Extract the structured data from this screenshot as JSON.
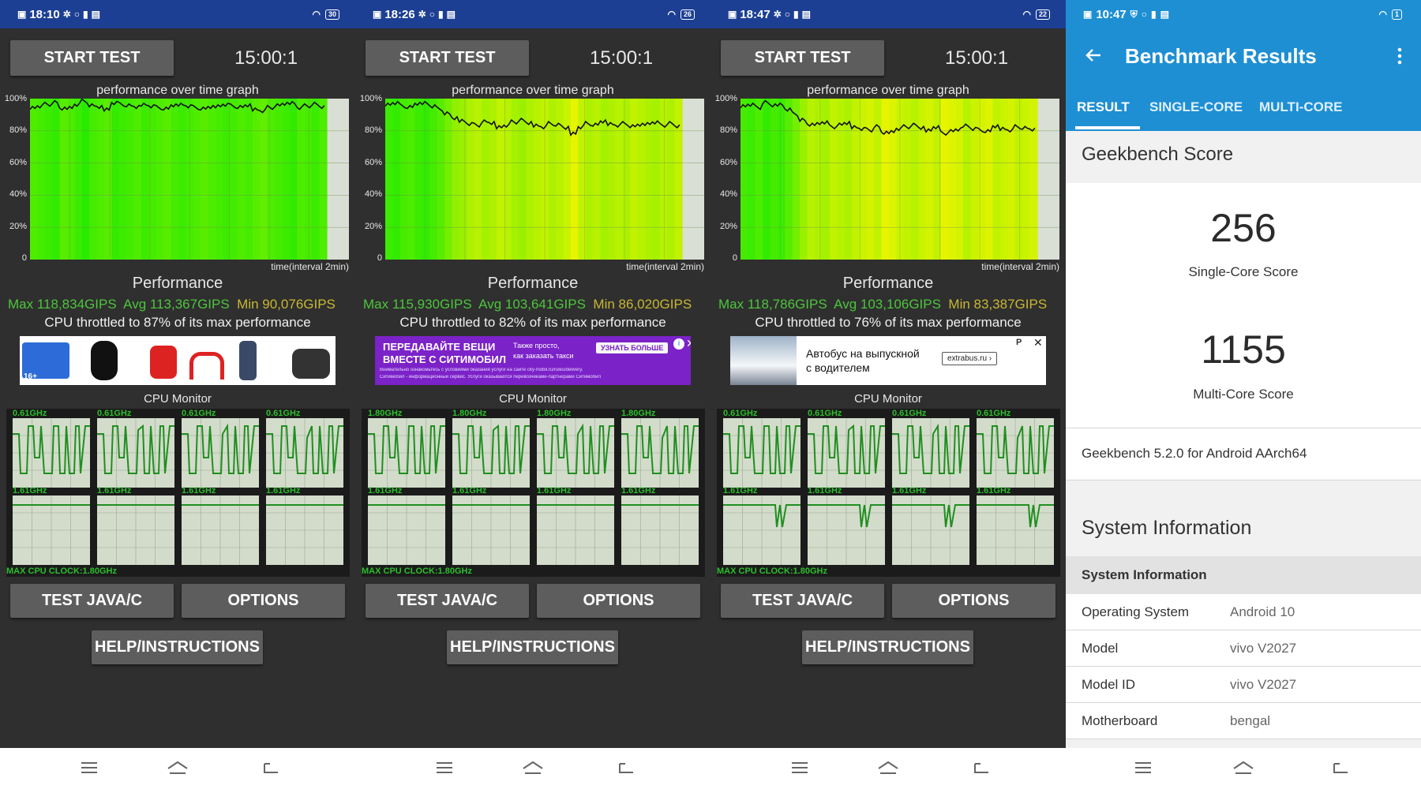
{
  "panels": [
    {
      "time": "18:10",
      "battery": "30",
      "start_label": "START TEST",
      "timer": "15:00:1",
      "graph_title": "performance over time graph",
      "yticks": [
        "100%",
        "80%",
        "60%",
        "40%",
        "20%",
        "0"
      ],
      "x_label": "time(interval 2min)",
      "perf_title": "Performance",
      "max": "Max 118,834GIPS",
      "avg": "Avg 113,367GIPS",
      "min": "Min 90,076GIPS",
      "throttle": "CPU throttled to 87% of its max performance",
      "ad": {
        "kind": "products",
        "badge": "16+"
      },
      "cpu_title": "CPU Monitor",
      "top_freq": "0.61GHz",
      "bottom_freq": "1.61GHz",
      "max_clock": "MAX CPU CLOCK:1.80GHz",
      "java_label": "TEST JAVA/C",
      "options_label": "OPTIONS",
      "help_label": "HELP/INSTRUCTIONS",
      "perf_series": [
        96,
        97,
        98,
        99,
        95,
        96,
        98,
        100,
        97,
        96,
        95,
        99,
        98,
        97,
        96,
        98,
        97,
        96,
        95,
        97,
        98,
        97,
        96,
        95,
        96,
        97,
        98,
        97,
        96,
        97,
        95,
        94,
        96,
        97,
        98,
        99,
        96,
        97,
        98,
        96
      ]
    },
    {
      "time": "18:26",
      "battery": "26",
      "start_label": "START TEST",
      "timer": "15:00:1",
      "graph_title": "performance over time graph",
      "yticks": [
        "100%",
        "80%",
        "60%",
        "40%",
        "20%",
        "0"
      ],
      "x_label": "time(interval 2min)",
      "perf_title": "Performance",
      "max": "Max 115,930GIPS",
      "avg": "Avg 103,641GIPS",
      "min": "Min 86,020GIPS",
      "throttle": "CPU throttled to 82% of its max performance",
      "ad": {
        "kind": "taxi",
        "l1": "ПЕРЕДАВАЙТЕ ВЕЩИ",
        "l2": "ВМЕСТЕ С СИТИМОБИЛ",
        "r1": "Также просто,",
        "r2": "как заказать такси",
        "cta": "УЗНАТЬ БОЛЬШЕ",
        "fine1": "Внимательно ознакомьтесь с условиями оказания услуги на сайте city-mobil.ru/rules/delivery.",
        "fine2": "Ситимобил - информационный сервис. Услуги оказываются перевозчиками-партнерами Ситимобил"
      },
      "cpu_title": "CPU Monitor",
      "top_freq": "1.80GHz",
      "bottom_freq": "1.61GHz",
      "max_clock": "MAX CPU CLOCK:1.80GHz",
      "java_label": "TEST JAVA/C",
      "options_label": "OPTIONS",
      "help_label": "HELP/INSTRUCTIONS",
      "perf_series": [
        98,
        99,
        97,
        96,
        98,
        99,
        97,
        95,
        92,
        89,
        88,
        86,
        85,
        87,
        86,
        84,
        85,
        87,
        88,
        86,
        85,
        84,
        86,
        85,
        83,
        80,
        84,
        86,
        85,
        87,
        86,
        85,
        86,
        84,
        85,
        86,
        87,
        85,
        86,
        84
      ]
    },
    {
      "time": "18:47",
      "battery": "22",
      "start_label": "START TEST",
      "timer": "15:00:1",
      "graph_title": "performance over time graph",
      "yticks": [
        "100%",
        "80%",
        "60%",
        "40%",
        "20%",
        "0"
      ],
      "x_label": "time(interval 2min)",
      "perf_title": "Performance",
      "max": "Max 118,786GIPS",
      "avg": "Avg 103,106GIPS",
      "min": "Min 83,387GIPS",
      "throttle": "CPU throttled to 76% of its max performance",
      "ad": {
        "kind": "bus",
        "text1": "Автобус на выпускной",
        "text2": "с водителем",
        "link": "extrabus.ru"
      },
      "cpu_title": "CPU Monitor",
      "top_freq": "0.61GHz",
      "bottom_freq": "1.61GHz",
      "max_clock": "MAX CPU CLOCK:1.80GHz",
      "java_label": "TEST JAVA/C",
      "options_label": "OPTIONS",
      "help_label": "HELP/INSTRUCTIONS",
      "perf_series": [
        97,
        98,
        96,
        99,
        97,
        98,
        95,
        92,
        88,
        85,
        86,
        87,
        84,
        85,
        86,
        84,
        83,
        82,
        84,
        80,
        81,
        83,
        84,
        85,
        83,
        82,
        84,
        80,
        81,
        82,
        85,
        83,
        82,
        81,
        84,
        83,
        82,
        84,
        83,
        82
      ]
    }
  ],
  "geekbench": {
    "time": "10:47",
    "battery": "1",
    "title": "Benchmark Results",
    "tabs": [
      "RESULT",
      "SINGLE-CORE",
      "MULTI-CORE"
    ],
    "score_header": "Geekbench Score",
    "single_score": "256",
    "single_label": "Single-Core Score",
    "multi_score": "1155",
    "multi_label": "Multi-Core Score",
    "version": "Geekbench 5.2.0 for Android AArch64",
    "sysinfo_header": "System Information",
    "sysinfo_sub": "System Information",
    "rows": [
      {
        "k": "Operating System",
        "v": "Android 10"
      },
      {
        "k": "Model",
        "v": "vivo V2027"
      },
      {
        "k": "Model ID",
        "v": "vivo V2027"
      },
      {
        "k": "Motherboard",
        "v": "bengal"
      }
    ]
  }
}
